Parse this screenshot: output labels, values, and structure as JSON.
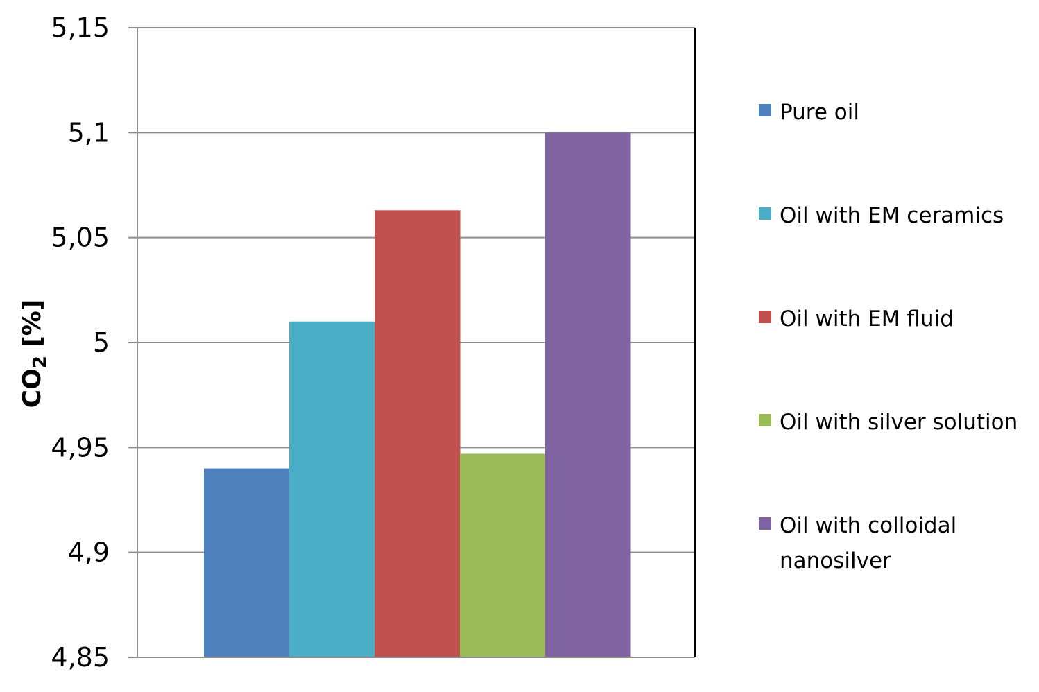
{
  "chart_data": {
    "type": "bar",
    "title": "",
    "xlabel": "",
    "ylabel": "CO",
    "ylabel_subscript": "2",
    "ylabel_suffix": " [%]",
    "ylim": [
      4.85,
      5.15
    ],
    "yticks": [
      4.85,
      4.9,
      4.95,
      5.0,
      5.05,
      5.1,
      5.15
    ],
    "ytick_labels": [
      "4,85",
      "4,9",
      "4,95",
      "5",
      "5,05",
      "5,1",
      "5,15"
    ],
    "grid": true,
    "legend_position": "right",
    "series": [
      {
        "name": "Pure oil",
        "values": [
          4.94
        ],
        "color": "#4F81BD"
      },
      {
        "name": "Oil with EM ceramics",
        "values": [
          5.01
        ],
        "color": "#4BACC6"
      },
      {
        "name": "Oil with EM fluid",
        "values": [
          5.063
        ],
        "color": "#C0504D"
      },
      {
        "name": "Oil with silver solution",
        "values": [
          4.947
        ],
        "color": "#9BBB59"
      },
      {
        "name": "Oil with colloidal nanosilver",
        "legend_lines": [
          "Oil with colloidal",
          "nanosilver"
        ],
        "values": [
          5.1
        ],
        "color": "#8064A2"
      }
    ]
  }
}
